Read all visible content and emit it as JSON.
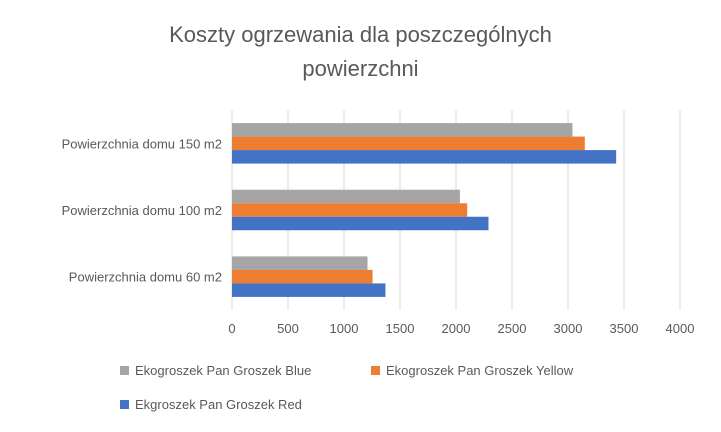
{
  "chart_data": {
    "type": "bar",
    "orientation": "horizontal",
    "title": "Koszty ogrzewania dla poszczególnych powierzchni",
    "title_lines": [
      "Koszty ogrzewania dla poszczególnych",
      "powierzchni"
    ],
    "categories": [
      "Powierzchnia domu 60 m2",
      "Powierzchnia domu 100 m2",
      "Powierzchnia domu 150 m2"
    ],
    "series": [
      {
        "name": "Ekgroszek Pan Groszek Red",
        "color": "#4472C4",
        "values": [
          1370,
          2290,
          3430
        ]
      },
      {
        "name": "Ekogroszek Pan Groszek Yellow",
        "color": "#ED7D31",
        "values": [
          1255,
          2100,
          3150
        ]
      },
      {
        "name": "Ekogroszek Pan Groszek Blue",
        "color": "#A5A5A5",
        "values": [
          1210,
          2035,
          3040
        ]
      }
    ],
    "xlim": [
      0,
      4000
    ],
    "xticks": [
      "0",
      "500",
      "1000",
      "1500",
      "2000",
      "2500",
      "3000",
      "3500",
      "4000"
    ],
    "grid": true,
    "legend_position": "bottom"
  }
}
